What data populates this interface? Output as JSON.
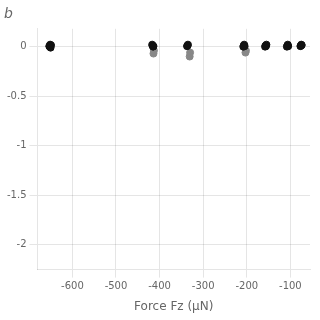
{
  "chart_data": {
    "type": "scatter",
    "title": "b",
    "xlabel": "Force Fz (μN)",
    "xlim": [
      -680,
      -55
    ],
    "ylim": [
      -2.25,
      0.18
    ],
    "xticks": [
      -600,
      -500,
      -400,
      -300,
      -200,
      -100
    ],
    "yticks": [
      0,
      -0.5,
      -1,
      -1.5,
      -2
    ],
    "grid": true,
    "series": [
      {
        "x": [
          -651,
          -651,
          -653,
          -649,
          -650,
          -652
        ],
        "values": [
          0.01,
          0.02,
          0.005,
          0.015,
          -0.01,
          0.0
        ],
        "color": "#111111",
        "marker": "circle"
      },
      {
        "x": [
          -416,
          -417,
          -414,
          -415
        ],
        "values": [
          0.01,
          0.02,
          0.005,
          0.0
        ],
        "color": "#111111",
        "marker": "circle"
      },
      {
        "x": [
          -413,
          -414
        ],
        "values": [
          -0.04,
          -0.07
        ],
        "color": "#888888",
        "marker": "circle"
      },
      {
        "x": [
          -336,
          -337,
          -335
        ],
        "values": [
          0.01,
          0.005,
          0.02
        ],
        "color": "#111111",
        "marker": "circle"
      },
      {
        "x": [
          -330,
          -331
        ],
        "values": [
          -0.06,
          -0.1
        ],
        "color": "#888888",
        "marker": "circle"
      },
      {
        "x": [
          -207,
          -206,
          -205,
          -208
        ],
        "values": [
          0.01,
          0.02,
          0.005,
          0.0
        ],
        "color": "#111111",
        "marker": "circle"
      },
      {
        "x": [
          -202,
          -203
        ],
        "values": [
          -0.04,
          -0.06
        ],
        "color": "#888888",
        "marker": "circle"
      },
      {
        "x": [
          -157,
          -156,
          -155,
          -158
        ],
        "values": [
          0.01,
          0.005,
          0.02,
          0.0
        ],
        "color": "#111111",
        "marker": "circle"
      },
      {
        "x": [
          -107,
          -106,
          -105,
          -108
        ],
        "values": [
          0.01,
          0.02,
          0.005,
          0.0
        ],
        "color": "#111111",
        "marker": "circle"
      },
      {
        "x": [
          -76,
          -75,
          -77,
          -74
        ],
        "values": [
          0.01,
          0.02,
          0.005,
          0.015
        ],
        "color": "#111111",
        "marker": "circle"
      }
    ]
  }
}
